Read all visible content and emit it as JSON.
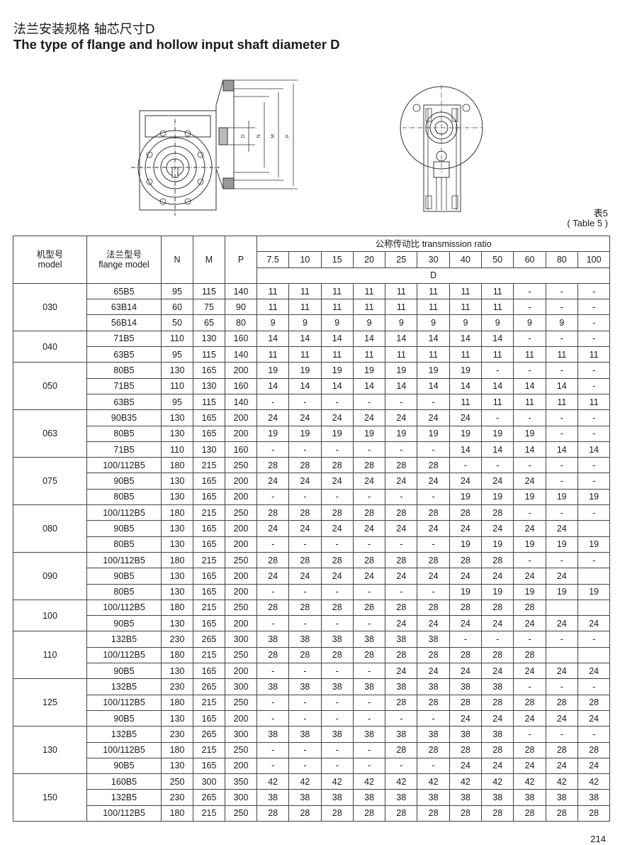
{
  "header": {
    "title_cn": "法兰安装规格 轴芯尺寸D",
    "title_en": "The type of flange and hollow input shaft diameter D"
  },
  "drawings": {
    "side_view_labels": [
      "D",
      "N",
      "M",
      "P"
    ]
  },
  "table_label": {
    "cn": "表5",
    "en": "( Table 5 )"
  },
  "table": {
    "headers": {
      "model_cn": "机型号",
      "model_en": "model",
      "flange_cn": "法兰型号",
      "flange_en": "flange model",
      "N": "N",
      "M": "M",
      "P": "P",
      "ratio_title": "公称传动比 transmission ratio",
      "D": "D"
    },
    "ratios": [
      "7.5",
      "10",
      "15",
      "20",
      "25",
      "30",
      "40",
      "50",
      "60",
      "80",
      "100"
    ],
    "groups": [
      {
        "model": "030",
        "rows": [
          {
            "flange": "65B5",
            "N": "95",
            "M": "115",
            "P": "140",
            "D": [
              "11",
              "11",
              "11",
              "11",
              "11",
              "11",
              "11",
              "11",
              "-",
              "-",
              "-"
            ]
          },
          {
            "flange": "63B14",
            "N": "60",
            "M": "75",
            "P": "90",
            "D": [
              "11",
              "11",
              "11",
              "11",
              "11",
              "11",
              "11",
              "11",
              "-",
              "-",
              "-"
            ]
          },
          {
            "flange": "56B14",
            "N": "50",
            "M": "65",
            "P": "80",
            "D": [
              "9",
              "9",
              "9",
              "9",
              "9",
              "9",
              "9",
              "9",
              "9",
              "9",
              "-"
            ]
          }
        ]
      },
      {
        "model": "040",
        "rows": [
          {
            "flange": "71B5",
            "N": "110",
            "M": "130",
            "P": "160",
            "D": [
              "14",
              "14",
              "14",
              "14",
              "14",
              "14",
              "14",
              "14",
              "-",
              "-",
              "-"
            ]
          },
          {
            "flange": "63B5",
            "N": "95",
            "M": "115",
            "P": "140",
            "D": [
              "11",
              "11",
              "11",
              "11",
              "11",
              "11",
              "11",
              "11",
              "11",
              "11",
              "11"
            ]
          }
        ]
      },
      {
        "model": "050",
        "rows": [
          {
            "flange": "80B5",
            "N": "130",
            "M": "165",
            "P": "200",
            "D": [
              "19",
              "19",
              "19",
              "19",
              "19",
              "19",
              "19",
              "-",
              "-",
              "-",
              "-"
            ]
          },
          {
            "flange": "71B5",
            "N": "110",
            "M": "130",
            "P": "160",
            "D": [
              "14",
              "14",
              "14",
              "14",
              "14",
              "14",
              "14",
              "14",
              "14",
              "14",
              "-"
            ]
          },
          {
            "flange": "63B5",
            "N": "95",
            "M": "115",
            "P": "140",
            "D": [
              "-",
              "-",
              "-",
              "-",
              "-",
              "-",
              "11",
              "11",
              "11",
              "11",
              "11"
            ]
          }
        ]
      },
      {
        "model": "063",
        "rows": [
          {
            "flange": "90B35",
            "N": "130",
            "M": "165",
            "P": "200",
            "D": [
              "24",
              "24",
              "24",
              "24",
              "24",
              "24",
              "24",
              "-",
              "-",
              "-",
              "-"
            ]
          },
          {
            "flange": "80B5",
            "N": "130",
            "M": "165",
            "P": "200",
            "D": [
              "19",
              "19",
              "19",
              "19",
              "19",
              "19",
              "19",
              "19",
              "19",
              "-",
              "-"
            ]
          },
          {
            "flange": "71B5",
            "N": "110",
            "M": "130",
            "P": "160",
            "D": [
              "-",
              "-",
              "-",
              "-",
              "-",
              "-",
              "14",
              "14",
              "14",
              "14",
              "14"
            ]
          }
        ]
      },
      {
        "model": "075",
        "rows": [
          {
            "flange": "100/112B5",
            "N": "180",
            "M": "215",
            "P": "250",
            "D": [
              "28",
              "28",
              "28",
              "28",
              "28",
              "28",
              "-",
              "-",
              "-",
              "-",
              "-"
            ]
          },
          {
            "flange": "90B5",
            "N": "130",
            "M": "165",
            "P": "200",
            "D": [
              "24",
              "24",
              "24",
              "24",
              "24",
              "24",
              "24",
              "24",
              "24",
              "-",
              "-"
            ]
          },
          {
            "flange": "80B5",
            "N": "130",
            "M": "165",
            "P": "200",
            "D": [
              "-",
              "-",
              "-",
              "-",
              "-",
              "-",
              "19",
              "19",
              "19",
              "19",
              "19"
            ]
          }
        ]
      },
      {
        "model": "080",
        "rows": [
          {
            "flange": "100/112B5",
            "N": "180",
            "M": "215",
            "P": "250",
            "D": [
              "28",
              "28",
              "28",
              "28",
              "28",
              "28",
              "28",
              "28",
              "-",
              "-",
              "-"
            ]
          },
          {
            "flange": "90B5",
            "N": "130",
            "M": "165",
            "P": "200",
            "D": [
              "24",
              "24",
              "24",
              "24",
              "24",
              "24",
              "24",
              "24",
              "24",
              "24",
              ""
            ]
          },
          {
            "flange": "80B5",
            "N": "130",
            "M": "165",
            "P": "200",
            "D": [
              "-",
              "-",
              "-",
              "-",
              "-",
              "-",
              "19",
              "19",
              "19",
              "19",
              "19"
            ]
          }
        ]
      },
      {
        "model": "090",
        "rows": [
          {
            "flange": "100/112B5",
            "N": "180",
            "M": "215",
            "P": "250",
            "D": [
              "28",
              "28",
              "28",
              "28",
              "28",
              "28",
              "28",
              "28",
              "-",
              "-",
              "-"
            ]
          },
          {
            "flange": "90B5",
            "N": "130",
            "M": "165",
            "P": "200",
            "D": [
              "24",
              "24",
              "24",
              "24",
              "24",
              "24",
              "24",
              "24",
              "24",
              "24",
              ""
            ]
          },
          {
            "flange": "80B5",
            "N": "130",
            "M": "165",
            "P": "200",
            "D": [
              "-",
              "-",
              "-",
              "-",
              "-",
              "-",
              "19",
              "19",
              "19",
              "19",
              "19"
            ]
          }
        ]
      },
      {
        "model": "100",
        "rows": [
          {
            "flange": "100/112B5",
            "N": "180",
            "M": "215",
            "P": "250",
            "D": [
              "28",
              "28",
              "28",
              "28",
              "28",
              "28",
              "28",
              "28",
              "28",
              "",
              ""
            ]
          },
          {
            "flange": "90B5",
            "N": "130",
            "M": "165",
            "P": "200",
            "D": [
              "-",
              "-",
              "-",
              "-",
              "24",
              "24",
              "24",
              "24",
              "24",
              "24",
              "24"
            ]
          }
        ]
      },
      {
        "model": "110",
        "rows": [
          {
            "flange": "132B5",
            "N": "230",
            "M": "265",
            "P": "300",
            "D": [
              "38",
              "38",
              "38",
              "38",
              "38",
              "38",
              "-",
              "-",
              "-",
              "-",
              "-"
            ]
          },
          {
            "flange": "100/112B5",
            "N": "180",
            "M": "215",
            "P": "250",
            "D": [
              "28",
              "28",
              "28",
              "28",
              "28",
              "28",
              "28",
              "28",
              "28",
              "",
              ""
            ]
          },
          {
            "flange": "90B5",
            "N": "130",
            "M": "165",
            "P": "200",
            "D": [
              "-",
              "-",
              "-",
              "-",
              "24",
              "24",
              "24",
              "24",
              "24",
              "24",
              "24"
            ]
          }
        ]
      },
      {
        "model": "125",
        "rows": [
          {
            "flange": "132B5",
            "N": "230",
            "M": "265",
            "P": "300",
            "D": [
              "38",
              "38",
              "38",
              "38",
              "38",
              "38",
              "38",
              "38",
              "-",
              "-",
              "-"
            ]
          },
          {
            "flange": "100/112B5",
            "N": "180",
            "M": "215",
            "P": "250",
            "D": [
              "-",
              "-",
              "-",
              "-",
              "28",
              "28",
              "28",
              "28",
              "28",
              "28",
              "28"
            ]
          },
          {
            "flange": "90B5",
            "N": "130",
            "M": "165",
            "P": "200",
            "D": [
              "-",
              "-",
              "-",
              "-",
              "-",
              "-",
              "24",
              "24",
              "24",
              "24",
              "24"
            ]
          }
        ]
      },
      {
        "model": "130",
        "rows": [
          {
            "flange": "132B5",
            "N": "230",
            "M": "265",
            "P": "300",
            "D": [
              "38",
              "38",
              "38",
              "38",
              "38",
              "38",
              "38",
              "38",
              "-",
              "-",
              "-"
            ]
          },
          {
            "flange": "100/112B5",
            "N": "180",
            "M": "215",
            "P": "250",
            "D": [
              "-",
              "-",
              "-",
              "-",
              "28",
              "28",
              "28",
              "28",
              "28",
              "28",
              "28"
            ]
          },
          {
            "flange": "90B5",
            "N": "130",
            "M": "165",
            "P": "200",
            "D": [
              "-",
              "-",
              "-",
              "-",
              "-",
              "-",
              "24",
              "24",
              "24",
              "24",
              "24"
            ]
          }
        ]
      },
      {
        "model": "150",
        "rows": [
          {
            "flange": "160B5",
            "N": "250",
            "M": "300",
            "P": "350",
            "D": [
              "42",
              "42",
              "42",
              "42",
              "42",
              "42",
              "42",
              "42",
              "42",
              "42",
              "42"
            ]
          },
          {
            "flange": "132B5",
            "N": "230",
            "M": "265",
            "P": "300",
            "D": [
              "38",
              "38",
              "38",
              "38",
              "38",
              "38",
              "38",
              "38",
              "38",
              "38",
              "38"
            ]
          },
          {
            "flange": "100/112B5",
            "N": "180",
            "M": "215",
            "P": "250",
            "D": [
              "28",
              "28",
              "28",
              "28",
              "28",
              "28",
              "28",
              "28",
              "28",
              "28",
              "28"
            ]
          }
        ]
      }
    ]
  },
  "footer": {
    "page_number": "214"
  }
}
